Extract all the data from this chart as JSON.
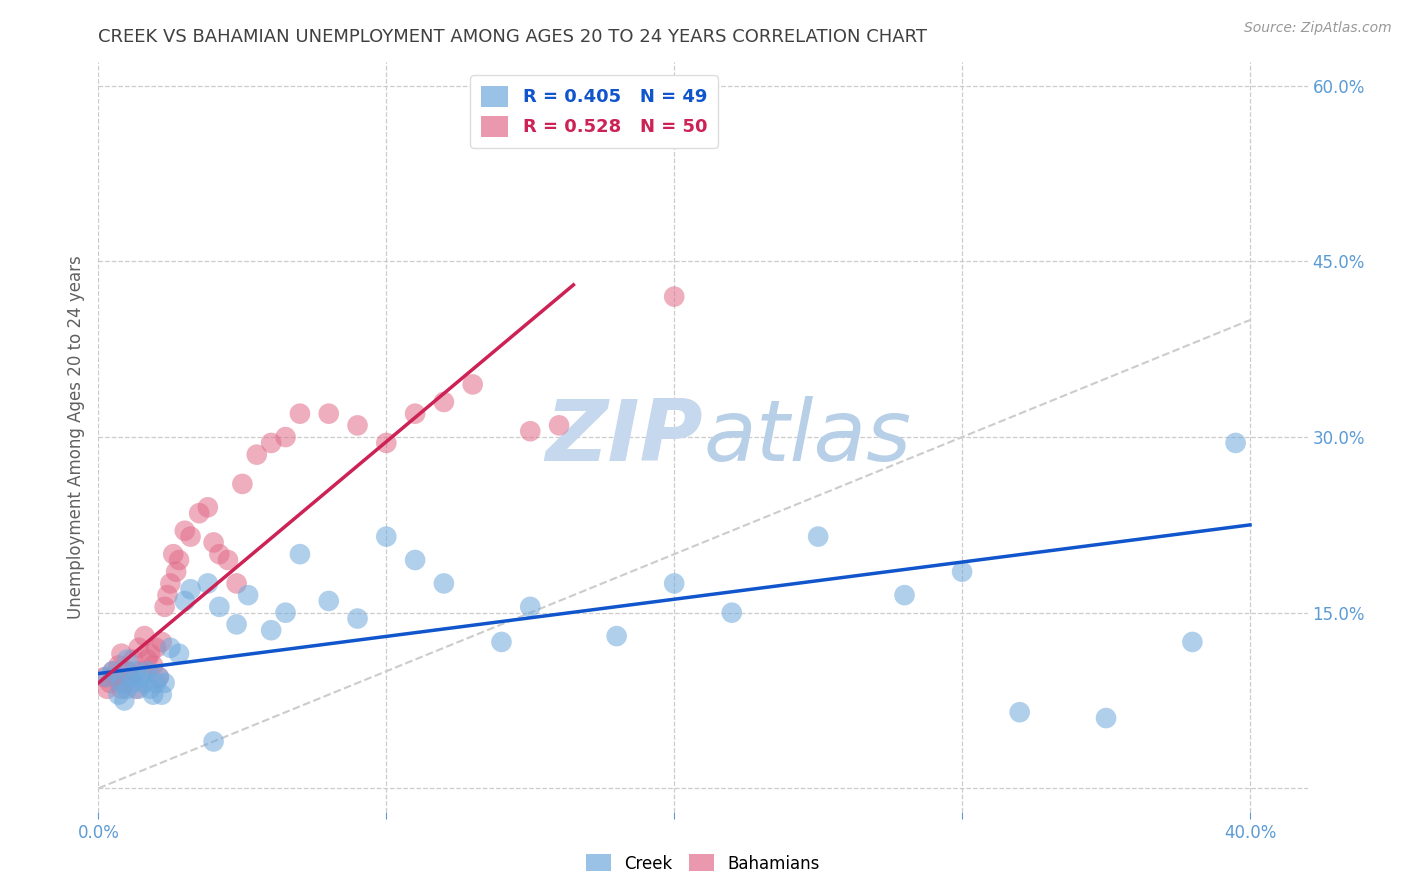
{
  "title": "CREEK VS BAHAMIAN UNEMPLOYMENT AMONG AGES 20 TO 24 YEARS CORRELATION CHART",
  "source": "Source: ZipAtlas.com",
  "ylabel": "Unemployment Among Ages 20 to 24 years",
  "xlim": [
    0.0,
    0.42
  ],
  "ylim": [
    -0.02,
    0.62
  ],
  "xticks": [
    0.0,
    0.1,
    0.2,
    0.3,
    0.4
  ],
  "xticklabels": [
    "0.0%",
    "",
    "",
    "",
    "40.0%"
  ],
  "yticks_right": [
    0.15,
    0.3,
    0.45,
    0.6
  ],
  "yticklabels_right": [
    "15.0%",
    "30.0%",
    "45.0%",
    "60.0%"
  ],
  "creek_color": "#6fa8dc",
  "bahamian_color": "#e06c8a",
  "creek_line_color": "#1155cc",
  "bahamian_line_color": "#cc2255",
  "diagonal_color": "#cccccc",
  "watermark_zip_color": "#c8d8ee",
  "watermark_atlas_color": "#c8d8ee",
  "legend_creek_R": "0.405",
  "legend_creek_N": "49",
  "legend_bahamian_R": "0.528",
  "legend_bahamian_N": "50",
  "creek_scatter_x": [
    0.003,
    0.005,
    0.007,
    0.008,
    0.009,
    0.01,
    0.01,
    0.011,
    0.012,
    0.013,
    0.014,
    0.015,
    0.016,
    0.017,
    0.018,
    0.019,
    0.02,
    0.021,
    0.022,
    0.023,
    0.025,
    0.028,
    0.03,
    0.032,
    0.038,
    0.042,
    0.048,
    0.052,
    0.06,
    0.065,
    0.07,
    0.08,
    0.09,
    0.1,
    0.11,
    0.12,
    0.14,
    0.15,
    0.18,
    0.2,
    0.22,
    0.25,
    0.28,
    0.3,
    0.32,
    0.35,
    0.38,
    0.395,
    0.04
  ],
  "creek_scatter_y": [
    0.095,
    0.1,
    0.08,
    0.09,
    0.075,
    0.11,
    0.085,
    0.095,
    0.09,
    0.1,
    0.085,
    0.095,
    0.09,
    0.1,
    0.085,
    0.08,
    0.09,
    0.095,
    0.08,
    0.09,
    0.12,
    0.115,
    0.16,
    0.17,
    0.175,
    0.155,
    0.14,
    0.165,
    0.135,
    0.15,
    0.2,
    0.16,
    0.145,
    0.215,
    0.195,
    0.175,
    0.125,
    0.155,
    0.13,
    0.175,
    0.15,
    0.215,
    0.165,
    0.185,
    0.065,
    0.06,
    0.125,
    0.295,
    0.04
  ],
  "bahamian_scatter_x": [
    0.002,
    0.003,
    0.004,
    0.005,
    0.006,
    0.007,
    0.008,
    0.008,
    0.009,
    0.01,
    0.011,
    0.012,
    0.013,
    0.014,
    0.015,
    0.016,
    0.017,
    0.018,
    0.019,
    0.02,
    0.021,
    0.022,
    0.023,
    0.024,
    0.025,
    0.026,
    0.027,
    0.028,
    0.03,
    0.032,
    0.035,
    0.038,
    0.04,
    0.042,
    0.045,
    0.048,
    0.05,
    0.055,
    0.06,
    0.065,
    0.07,
    0.08,
    0.09,
    0.1,
    0.11,
    0.12,
    0.13,
    0.15,
    0.16,
    0.2
  ],
  "bahamian_scatter_y": [
    0.095,
    0.085,
    0.09,
    0.1,
    0.095,
    0.105,
    0.085,
    0.115,
    0.09,
    0.1,
    0.095,
    0.11,
    0.085,
    0.12,
    0.1,
    0.13,
    0.11,
    0.115,
    0.105,
    0.12,
    0.095,
    0.125,
    0.155,
    0.165,
    0.175,
    0.2,
    0.185,
    0.195,
    0.22,
    0.215,
    0.235,
    0.24,
    0.21,
    0.2,
    0.195,
    0.175,
    0.26,
    0.285,
    0.295,
    0.3,
    0.32,
    0.32,
    0.31,
    0.295,
    0.32,
    0.33,
    0.345,
    0.305,
    0.31,
    0.42
  ],
  "creek_line_x": [
    0.0,
    0.4
  ],
  "creek_line_y": [
    0.098,
    0.225
  ],
  "bahamian_line_x": [
    0.0,
    0.165
  ],
  "bahamian_line_y": [
    0.09,
    0.43
  ],
  "diag_line_x": [
    0.0,
    0.4
  ],
  "diag_line_y": [
    0.0,
    0.4
  ],
  "background_color": "#ffffff",
  "grid_color": "#cccccc",
  "axis_label_color": "#5b9bd5",
  "title_color": "#404040",
  "ylabel_color": "#606060"
}
